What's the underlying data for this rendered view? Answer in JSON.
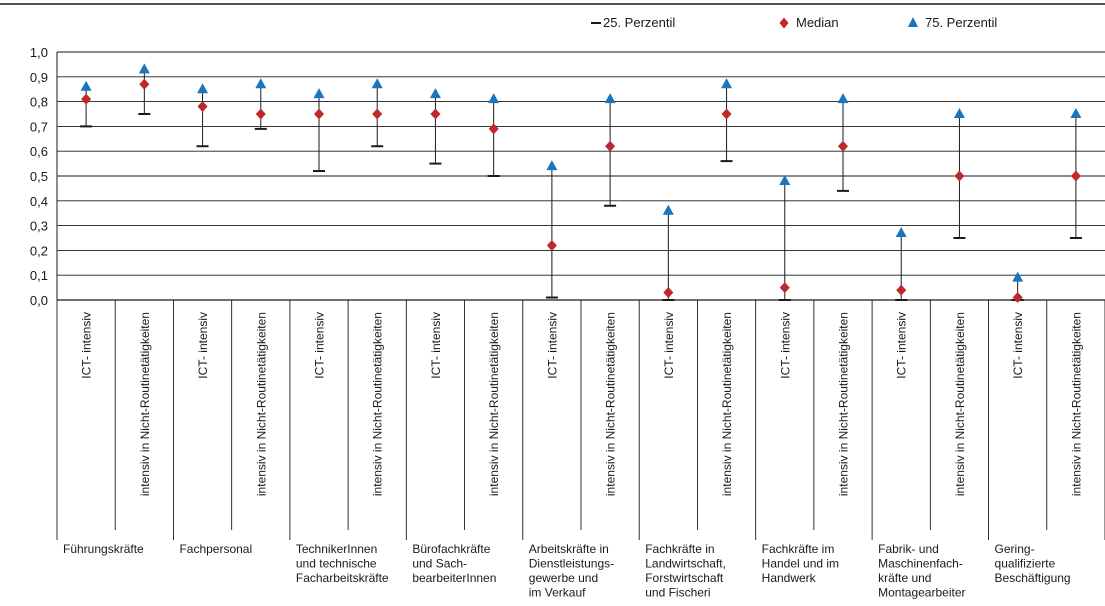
{
  "chart_data": {
    "type": "scatter",
    "ylim": [
      0,
      1
    ],
    "yticks": [
      "0,0",
      "0,1",
      "0,2",
      "0,3",
      "0,4",
      "0,5",
      "0,6",
      "0,7",
      "0,8",
      "0,9",
      "1,0"
    ],
    "grid": true,
    "legend_position": "top-right",
    "legend": [
      {
        "name": "25. Perzentil",
        "marker": "dash",
        "color": "#1a1a1a"
      },
      {
        "name": "Median",
        "marker": "diamond",
        "color": "#c0282d"
      },
      {
        "name": "75. Perzentil",
        "marker": "triangle",
        "color": "#1a75bc"
      }
    ],
    "sub_labels": [
      "ICT- intensiv",
      "intensiv in Nicht-Routinetätigkeiten"
    ],
    "groups": [
      {
        "lines": [
          "Führungskräfte"
        ],
        "items": [
          {
            "p25": 0.7,
            "median": 0.81,
            "p75": 0.86
          },
          {
            "p25": 0.75,
            "median": 0.87,
            "p75": 0.93
          }
        ]
      },
      {
        "lines": [
          "Fachpersonal"
        ],
        "items": [
          {
            "p25": 0.62,
            "median": 0.78,
            "p75": 0.85
          },
          {
            "p25": 0.69,
            "median": 0.75,
            "p75": 0.87
          }
        ]
      },
      {
        "lines": [
          "TechnikerInnen",
          "und technische",
          "Facharbeitskräfte"
        ],
        "items": [
          {
            "p25": 0.52,
            "median": 0.75,
            "p75": 0.83
          },
          {
            "p25": 0.62,
            "median": 0.75,
            "p75": 0.87
          }
        ]
      },
      {
        "lines": [
          "Bürofachkräfte",
          "und Sach-",
          "bearbeiterInnen"
        ],
        "items": [
          {
            "p25": 0.55,
            "median": 0.75,
            "p75": 0.83
          },
          {
            "p25": 0.5,
            "median": 0.69,
            "p75": 0.81
          }
        ]
      },
      {
        "lines": [
          "Arbeitskräfte in",
          "Dienstleistungs-",
          "gewerbe und",
          "im Verkauf"
        ],
        "items": [
          {
            "p25": 0.01,
            "median": 0.22,
            "p75": 0.54
          },
          {
            "p25": 0.38,
            "median": 0.62,
            "p75": 0.81
          }
        ]
      },
      {
        "lines": [
          "Fachkräfte in",
          "Landwirtschaft,",
          "Forstwirtschaft",
          "und Fischeri"
        ],
        "items": [
          {
            "p25": 0.0,
            "median": 0.03,
            "p75": 0.36
          },
          {
            "p25": 0.56,
            "median": 0.75,
            "p75": 0.87
          }
        ]
      },
      {
        "lines": [
          "Fachkräfte im",
          "Handel und im",
          "Handwerk"
        ],
        "items": [
          {
            "p25": 0.0,
            "median": 0.05,
            "p75": 0.48
          },
          {
            "p25": 0.44,
            "median": 0.62,
            "p75": 0.81
          }
        ]
      },
      {
        "lines": [
          "Fabrik- und",
          "Maschinenfach-",
          "kräfte und",
          "Montagearbeiter"
        ],
        "items": [
          {
            "p25": 0.0,
            "median": 0.04,
            "p75": 0.27
          },
          {
            "p25": 0.25,
            "median": 0.5,
            "p75": 0.75
          }
        ]
      },
      {
        "lines": [
          "Gering-",
          "qualifizierte",
          "Beschäftigung"
        ],
        "items": [
          {
            "p25": 0.0,
            "median": 0.01,
            "p75": 0.09
          },
          {
            "p25": 0.25,
            "median": 0.5,
            "p75": 0.75
          }
        ]
      }
    ]
  }
}
